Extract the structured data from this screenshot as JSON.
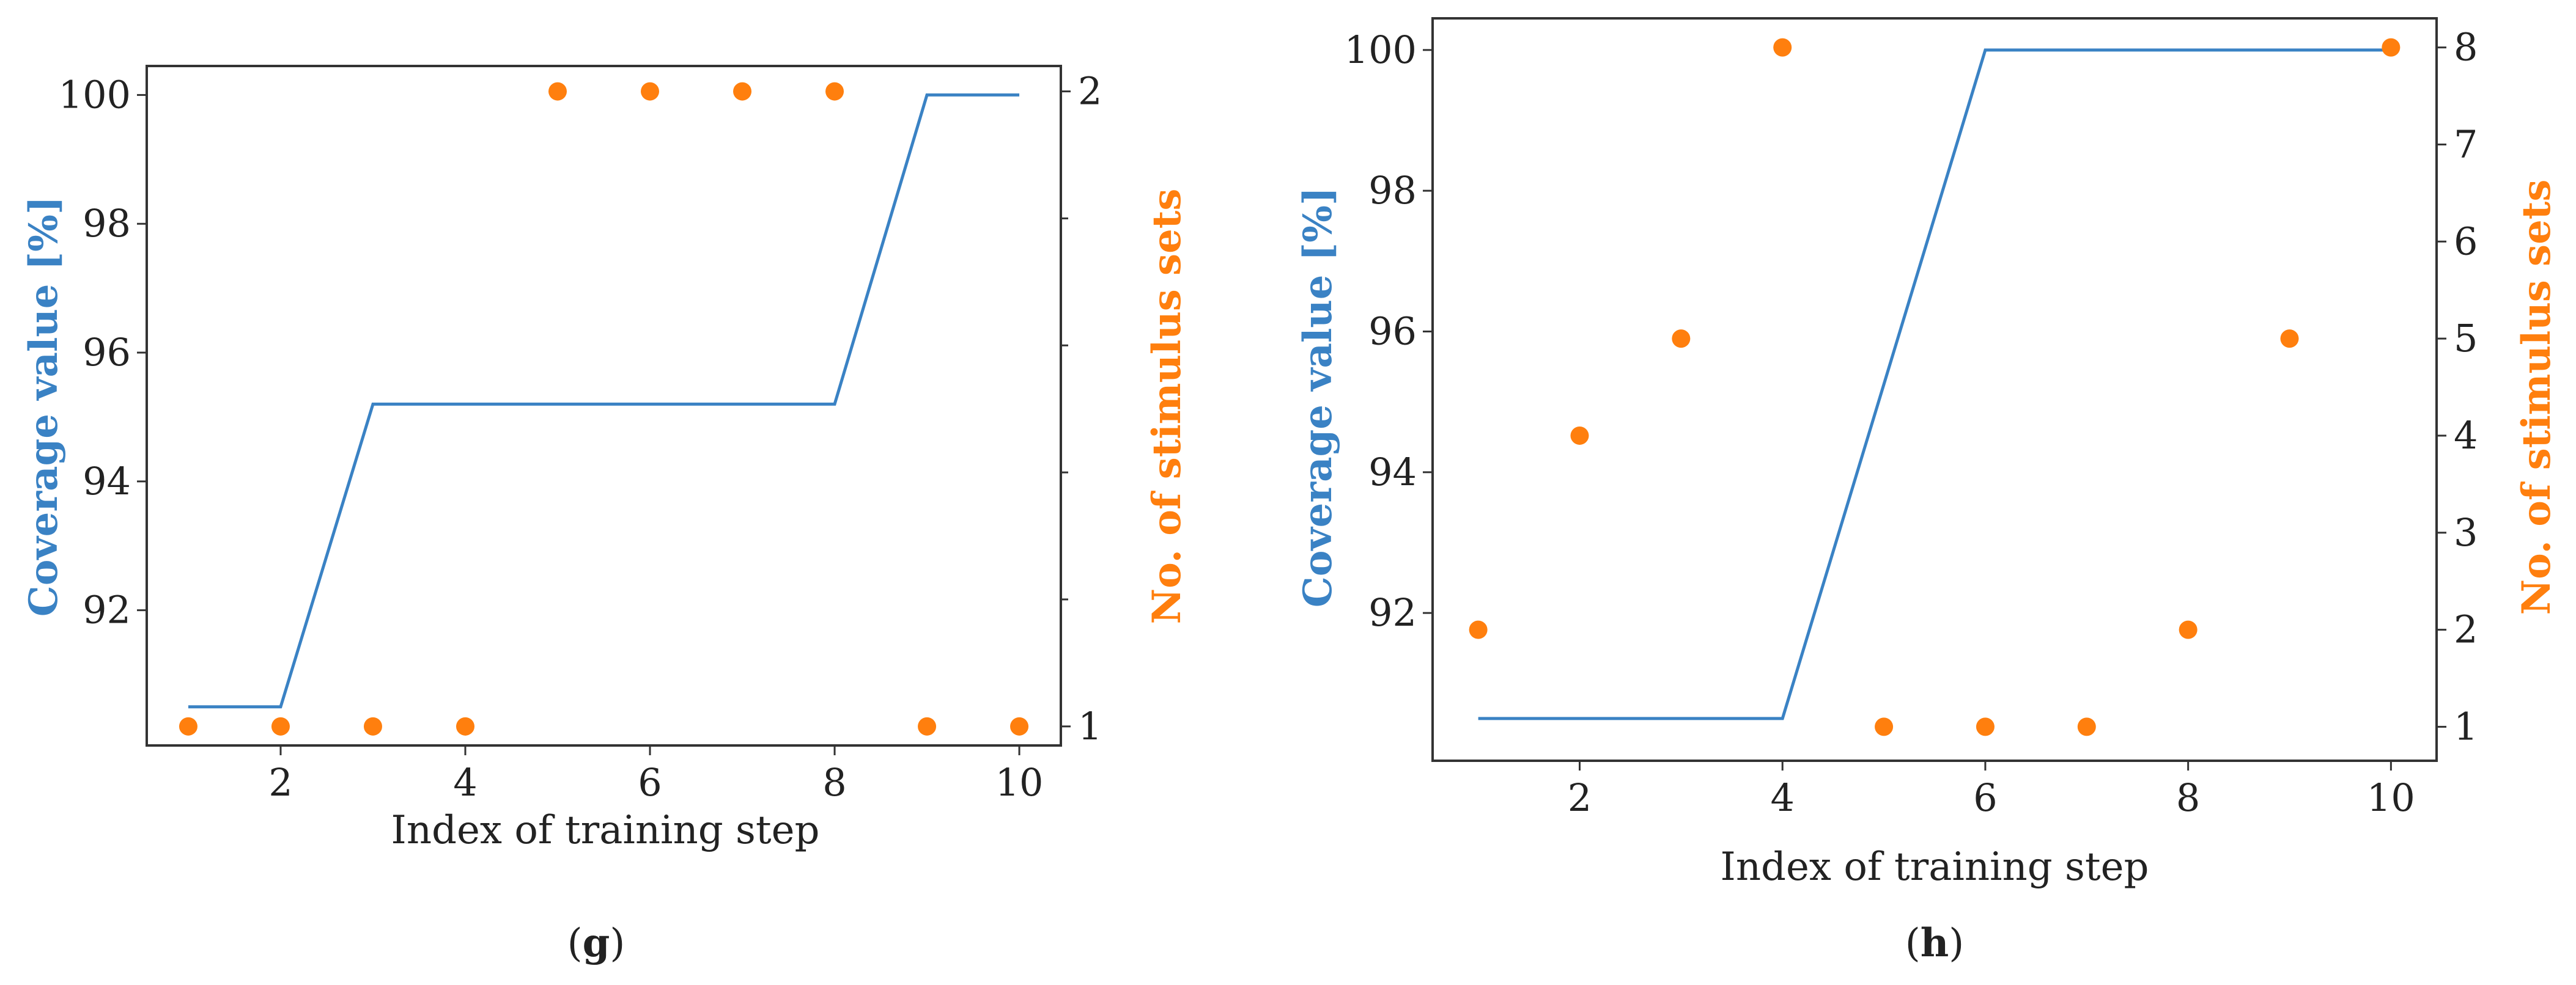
{
  "colors": {
    "coverage": "#3a82c4",
    "stimulus": "#ff7f0e",
    "axis": "#333333",
    "text": "#222222"
  },
  "chart_data": [
    {
      "type": "line+scatter",
      "panel": "g",
      "caption": "(g)",
      "caption_letter": "g",
      "xlabel": "Index of training step",
      "ylabel_left": "Coverage value [%]",
      "ylabel_right": "No. of stimulus sets",
      "xlim": [
        0.55,
        10.45
      ],
      "ylim_left": [
        89.9,
        100.45
      ],
      "ylim_right": [
        0.97,
        2.04
      ],
      "xticks": [
        2,
        4,
        6,
        8,
        10
      ],
      "yticks_left": [
        92,
        94,
        96,
        98,
        100
      ],
      "yticks_right_labeled": [
        1,
        2
      ],
      "yticks_right_minor": [
        1.2,
        1.4,
        1.6,
        1.8
      ],
      "series": [
        {
          "name": "Coverage value [%]",
          "axis": "left",
          "kind": "line",
          "x": [
            1,
            2,
            3,
            4,
            5,
            6,
            7,
            8,
            9,
            10
          ],
          "y": [
            90.5,
            90.5,
            95.2,
            95.2,
            95.2,
            95.2,
            95.2,
            95.2,
            100,
            100
          ]
        },
        {
          "name": "No. of stimulus sets",
          "axis": "right",
          "kind": "scatter",
          "x": [
            1,
            2,
            3,
            4,
            5,
            6,
            7,
            8,
            9,
            10
          ],
          "y": [
            1,
            1,
            1,
            1,
            2,
            2,
            2,
            2,
            1,
            1
          ]
        }
      ]
    },
    {
      "type": "line+scatter",
      "panel": "h",
      "caption": "(h)",
      "caption_letter": "h",
      "xlabel": "Index of training step",
      "ylabel_left": "Coverage value [%]",
      "ylabel_right": "No. of stimulus sets",
      "xlim": [
        0.55,
        10.45
      ],
      "ylim_left": [
        89.9,
        100.45
      ],
      "ylim_right": [
        0.65,
        8.3
      ],
      "xticks": [
        2,
        4,
        6,
        8,
        10
      ],
      "yticks_left": [
        92,
        94,
        96,
        98,
        100
      ],
      "yticks_right_labeled": [
        1,
        2,
        3,
        4,
        5,
        6,
        7,
        8
      ],
      "yticks_right_minor": [],
      "series": [
        {
          "name": "Coverage value [%]",
          "axis": "left",
          "kind": "line",
          "x": [
            1,
            2,
            3,
            4,
            5,
            6,
            7,
            8,
            9,
            10
          ],
          "y": [
            90.5,
            90.5,
            90.5,
            90.5,
            95.25,
            100,
            100,
            100,
            100,
            100
          ]
        },
        {
          "name": "No. of stimulus sets",
          "axis": "right",
          "kind": "scatter",
          "x": [
            1,
            2,
            3,
            4,
            5,
            6,
            7,
            8,
            9,
            10
          ],
          "y": [
            2,
            4,
            5,
            8,
            1,
            1,
            1,
            2,
            5,
            8
          ]
        }
      ]
    }
  ]
}
